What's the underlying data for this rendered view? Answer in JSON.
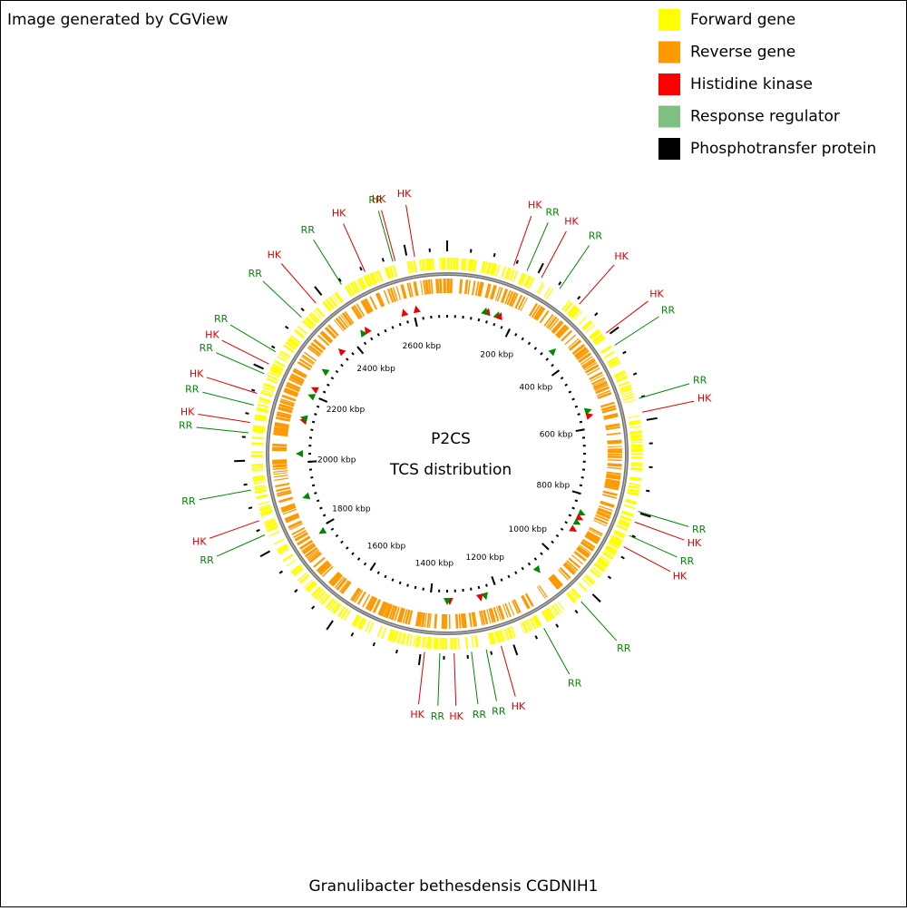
{
  "header": {
    "title": "Image generated by CGView"
  },
  "legend": [
    {
      "label": "Forward gene",
      "color": "#ffff00"
    },
    {
      "label": "Reverse gene",
      "color": "#ff9900"
    },
    {
      "label": "Histidine kinase",
      "color": "#ff0000"
    },
    {
      "label": "Response regulator",
      "color": "#7fbf7f"
    },
    {
      "label": "Phosphotransfer protein",
      "color": "#000000"
    }
  ],
  "center": {
    "line1": "P2CS",
    "line2": "TCS distribution"
  },
  "ticks": [
    "200 kbp",
    "400 kbp",
    "600 kbp",
    "800 kbp",
    "1000 kbp",
    "1200 kbp",
    "1400 kbp",
    "1600 kbp",
    "1800 kbp",
    "2000 kbp",
    "2200 kbp",
    "2400 kbp",
    "2600 kbp"
  ],
  "features": [
    {
      "label": "HK",
      "color": "#dd0000"
    },
    {
      "label": "RR",
      "color": "#008800"
    },
    {
      "label": "HK",
      "color": "#dd0000"
    },
    {
      "label": "RR",
      "color": "#008800"
    },
    {
      "label": "HK",
      "color": "#dd0000"
    },
    {
      "label": "HK",
      "color": "#dd0000"
    },
    {
      "label": "RR",
      "color": "#008800"
    },
    {
      "label": "RR",
      "color": "#008800"
    },
    {
      "label": "HK",
      "color": "#dd0000"
    },
    {
      "label": "RR",
      "color": "#008800"
    },
    {
      "label": "HK",
      "color": "#dd0000"
    },
    {
      "label": "RR",
      "color": "#008800"
    },
    {
      "label": "HK",
      "color": "#dd0000"
    },
    {
      "label": "RR",
      "color": "#008800"
    },
    {
      "label": "RR",
      "color": "#008800"
    },
    {
      "label": "HK",
      "color": "#dd0000"
    },
    {
      "label": "RR",
      "color": "#008800"
    },
    {
      "label": "RR",
      "color": "#008800"
    },
    {
      "label": "HK",
      "color": "#dd0000"
    },
    {
      "label": "RR",
      "color": "#008800"
    },
    {
      "label": "HK",
      "color": "#dd0000"
    },
    {
      "label": "RR",
      "color": "#008800"
    },
    {
      "label": "HK",
      "color": "#dd0000"
    },
    {
      "label": "RR",
      "color": "#008800"
    },
    {
      "label": "RR",
      "color": "#008800"
    },
    {
      "label": "HK",
      "color": "#dd0000"
    },
    {
      "label": "RR",
      "color": "#008800"
    },
    {
      "label": "HK",
      "color": "#dd0000"
    },
    {
      "label": "RR",
      "color": "#008800"
    },
    {
      "label": "HK",
      "color": "#dd0000"
    },
    {
      "label": "RR",
      "color": "#008800"
    },
    {
      "label": "RR",
      "color": "#008800"
    },
    {
      "label": "HK",
      "color": "#dd0000"
    },
    {
      "label": "RR",
      "color": "#008800"
    },
    {
      "label": "HK",
      "color": "#dd0000"
    },
    {
      "label": "RR",
      "color": "#008800"
    },
    {
      "label": "HK",
      "color": "#dd0000"
    },
    {
      "label": "HK",
      "color": "#dd0000"
    }
  ],
  "footer": {
    "organism": "Granulibacter bethesdensis CGDNIH1"
  }
}
